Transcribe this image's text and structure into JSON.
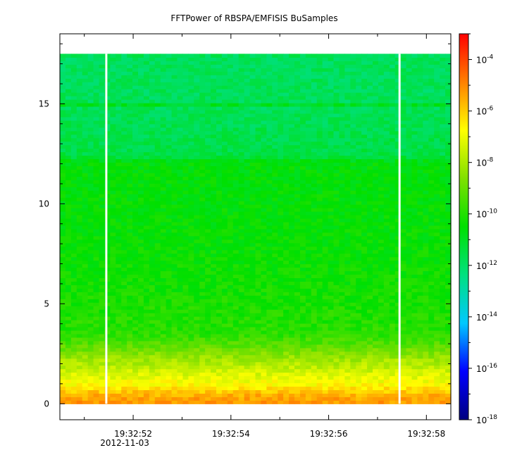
{
  "chart_data": {
    "type": "heatmap",
    "title": "FFTPower of RBSPA/EMFISIS  BuSamples",
    "xlabel": "",
    "ylabel": "",
    "x_range": [
      "19:32:50.5",
      "19:32:58.5"
    ],
    "x_ticks": [
      {
        "time": "19:32:52",
        "label": "19:32:52",
        "sublabel": "2012-11-03"
      },
      {
        "time": "19:32:54",
        "label": "19:32:54",
        "sublabel": ""
      },
      {
        "time": "19:32:56",
        "label": "19:32:56",
        "sublabel": ""
      },
      {
        "time": "19:32:58",
        "label": "19:32:58",
        "sublabel": ""
      }
    ],
    "ylim": [
      -0.8,
      18.5
    ],
    "y_ticks": [
      0,
      5,
      10,
      15
    ],
    "y_tick_labels": [
      "0",
      "5",
      "10",
      "15"
    ],
    "colorbar": {
      "scale": "log",
      "range": [
        1e-18,
        0.001
      ],
      "ticks": [
        {
          "value": -18,
          "base": "10",
          "exp": "-18"
        },
        {
          "value": -16,
          "base": "10",
          "exp": "-16"
        },
        {
          "value": -14,
          "base": "10",
          "exp": "-14"
        },
        {
          "value": -12,
          "base": "10",
          "exp": "-12"
        },
        {
          "value": -10,
          "base": "10",
          "exp": "-10"
        },
        {
          "value": -8,
          "base": "10",
          "exp": "-8"
        },
        {
          "value": -6,
          "base": "10",
          "exp": "-6"
        },
        {
          "value": -4,
          "base": "10",
          "exp": "-4"
        }
      ],
      "colors": [
        "#000080",
        "#0000ff",
        "#00c8ff",
        "#00e080",
        "#00e000",
        "#80e000",
        "#ffff00",
        "#ff8000",
        "#ff0000"
      ]
    },
    "data_gaps": [
      "19:32:51.45",
      "19:32:57.45"
    ],
    "spectrum_profile": [
      {
        "freq": 0.0,
        "log_power": -5.2
      },
      {
        "freq": 0.4,
        "log_power": -5.5
      },
      {
        "freq": 0.9,
        "log_power": -6.6
      },
      {
        "freq": 1.5,
        "log_power": -7.3
      },
      {
        "freq": 2.2,
        "log_power": -8.1
      },
      {
        "freq": 2.8,
        "log_power": -9.0
      },
      {
        "freq": 3.5,
        "log_power": -9.9
      },
      {
        "freq": 6.0,
        "log_power": -10.3
      },
      {
        "freq": 9.0,
        "log_power": -10.5
      },
      {
        "freq": 12.1,
        "log_power": -10.6
      },
      {
        "freq": 12.4,
        "log_power": -11.5
      },
      {
        "freq": 15.0,
        "log_power": -11.8
      },
      {
        "freq": 17.5,
        "log_power": -11.8
      }
    ],
    "line_feature": {
      "freq": 15.0,
      "log_power": -11.0
    }
  }
}
